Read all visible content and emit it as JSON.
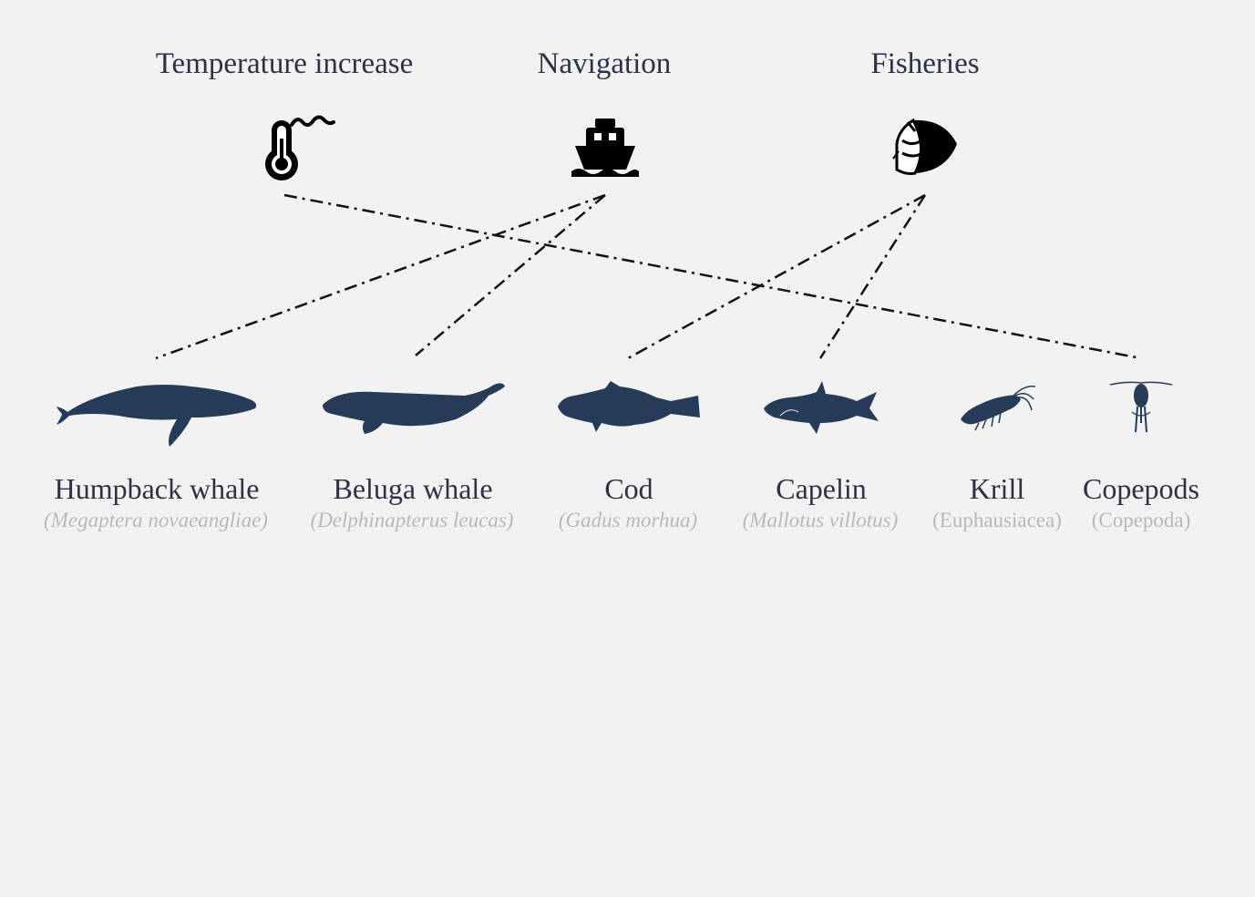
{
  "stressors": [
    {
      "id": "temperature",
      "label": "Temperature increase",
      "icon": "thermometer-icon"
    },
    {
      "id": "navigation",
      "label": "Navigation",
      "icon": "ship-icon"
    },
    {
      "id": "fisheries",
      "label": "Fisheries",
      "icon": "fishing-net-icon"
    }
  ],
  "species": [
    {
      "id": "humpback",
      "name": "Humpback whale",
      "latin": "(Megaptera novaeangliae)",
      "latin_italic": true,
      "icon": "humpback-whale-icon"
    },
    {
      "id": "beluga",
      "name": "Beluga whale",
      "latin": "(Delphinapterus leucas)",
      "latin_italic": true,
      "icon": "beluga-whale-icon"
    },
    {
      "id": "cod",
      "name": "Cod",
      "latin": "(Gadus morhua)",
      "latin_italic": true,
      "icon": "cod-icon"
    },
    {
      "id": "capelin",
      "name": "Capelin",
      "latin": "(Mallotus villotus)",
      "latin_italic": true,
      "icon": "capelin-icon"
    },
    {
      "id": "krill",
      "name": "Krill",
      "latin": "(Euphausiacea)",
      "latin_italic": false,
      "icon": "krill-icon"
    },
    {
      "id": "copepods",
      "name": "Copepods",
      "latin": "(Copepoda)",
      "latin_italic": false,
      "icon": "copepod-icon"
    }
  ],
  "links": [
    {
      "from": "temperature",
      "to": "copepods"
    },
    {
      "from": "navigation",
      "to": "humpback"
    },
    {
      "from": "navigation",
      "to": "beluga"
    },
    {
      "from": "fisheries",
      "to": "cod"
    },
    {
      "from": "fisheries",
      "to": "capelin"
    }
  ],
  "colors": {
    "silhouette": "#263b57",
    "label_text": "#2c3144",
    "latin_text": "#b8b8b8",
    "link_line": "#111111",
    "background": "#f2f2f2"
  }
}
